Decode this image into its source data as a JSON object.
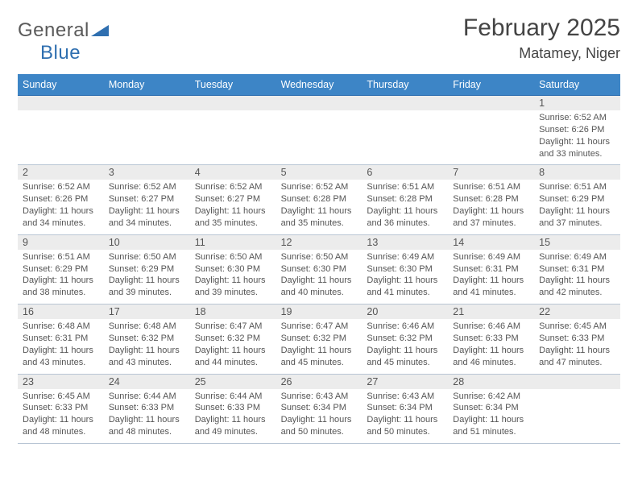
{
  "logo": {
    "part1": "General",
    "part2": "Blue"
  },
  "title": "February 2025",
  "location": "Matamey, Niger",
  "colors": {
    "header_bg": "#3d85c6",
    "header_text": "#ffffff",
    "daynum_bg": "#ececec",
    "text": "#555555",
    "divider": "#b8c5d4",
    "logo_gray": "#5a5a5a",
    "logo_blue": "#2f6fb0"
  },
  "day_labels": [
    "Sunday",
    "Monday",
    "Tuesday",
    "Wednesday",
    "Thursday",
    "Friday",
    "Saturday"
  ],
  "weeks": [
    {
      "nums": [
        "",
        "",
        "",
        "",
        "",
        "",
        "1"
      ],
      "details": [
        "",
        "",
        "",
        "",
        "",
        "",
        "Sunrise: 6:52 AM\nSunset: 6:26 PM\nDaylight: 11 hours and 33 minutes."
      ]
    },
    {
      "nums": [
        "2",
        "3",
        "4",
        "5",
        "6",
        "7",
        "8"
      ],
      "details": [
        "Sunrise: 6:52 AM\nSunset: 6:26 PM\nDaylight: 11 hours and 34 minutes.",
        "Sunrise: 6:52 AM\nSunset: 6:27 PM\nDaylight: 11 hours and 34 minutes.",
        "Sunrise: 6:52 AM\nSunset: 6:27 PM\nDaylight: 11 hours and 35 minutes.",
        "Sunrise: 6:52 AM\nSunset: 6:28 PM\nDaylight: 11 hours and 35 minutes.",
        "Sunrise: 6:51 AM\nSunset: 6:28 PM\nDaylight: 11 hours and 36 minutes.",
        "Sunrise: 6:51 AM\nSunset: 6:28 PM\nDaylight: 11 hours and 37 minutes.",
        "Sunrise: 6:51 AM\nSunset: 6:29 PM\nDaylight: 11 hours and 37 minutes."
      ]
    },
    {
      "nums": [
        "9",
        "10",
        "11",
        "12",
        "13",
        "14",
        "15"
      ],
      "details": [
        "Sunrise: 6:51 AM\nSunset: 6:29 PM\nDaylight: 11 hours and 38 minutes.",
        "Sunrise: 6:50 AM\nSunset: 6:29 PM\nDaylight: 11 hours and 39 minutes.",
        "Sunrise: 6:50 AM\nSunset: 6:30 PM\nDaylight: 11 hours and 39 minutes.",
        "Sunrise: 6:50 AM\nSunset: 6:30 PM\nDaylight: 11 hours and 40 minutes.",
        "Sunrise: 6:49 AM\nSunset: 6:30 PM\nDaylight: 11 hours and 41 minutes.",
        "Sunrise: 6:49 AM\nSunset: 6:31 PM\nDaylight: 11 hours and 41 minutes.",
        "Sunrise: 6:49 AM\nSunset: 6:31 PM\nDaylight: 11 hours and 42 minutes."
      ]
    },
    {
      "nums": [
        "16",
        "17",
        "18",
        "19",
        "20",
        "21",
        "22"
      ],
      "details": [
        "Sunrise: 6:48 AM\nSunset: 6:31 PM\nDaylight: 11 hours and 43 minutes.",
        "Sunrise: 6:48 AM\nSunset: 6:32 PM\nDaylight: 11 hours and 43 minutes.",
        "Sunrise: 6:47 AM\nSunset: 6:32 PM\nDaylight: 11 hours and 44 minutes.",
        "Sunrise: 6:47 AM\nSunset: 6:32 PM\nDaylight: 11 hours and 45 minutes.",
        "Sunrise: 6:46 AM\nSunset: 6:32 PM\nDaylight: 11 hours and 45 minutes.",
        "Sunrise: 6:46 AM\nSunset: 6:33 PM\nDaylight: 11 hours and 46 minutes.",
        "Sunrise: 6:45 AM\nSunset: 6:33 PM\nDaylight: 11 hours and 47 minutes."
      ]
    },
    {
      "nums": [
        "23",
        "24",
        "25",
        "26",
        "27",
        "28",
        ""
      ],
      "details": [
        "Sunrise: 6:45 AM\nSunset: 6:33 PM\nDaylight: 11 hours and 48 minutes.",
        "Sunrise: 6:44 AM\nSunset: 6:33 PM\nDaylight: 11 hours and 48 minutes.",
        "Sunrise: 6:44 AM\nSunset: 6:33 PM\nDaylight: 11 hours and 49 minutes.",
        "Sunrise: 6:43 AM\nSunset: 6:34 PM\nDaylight: 11 hours and 50 minutes.",
        "Sunrise: 6:43 AM\nSunset: 6:34 PM\nDaylight: 11 hours and 50 minutes.",
        "Sunrise: 6:42 AM\nSunset: 6:34 PM\nDaylight: 11 hours and 51 minutes.",
        ""
      ]
    }
  ]
}
